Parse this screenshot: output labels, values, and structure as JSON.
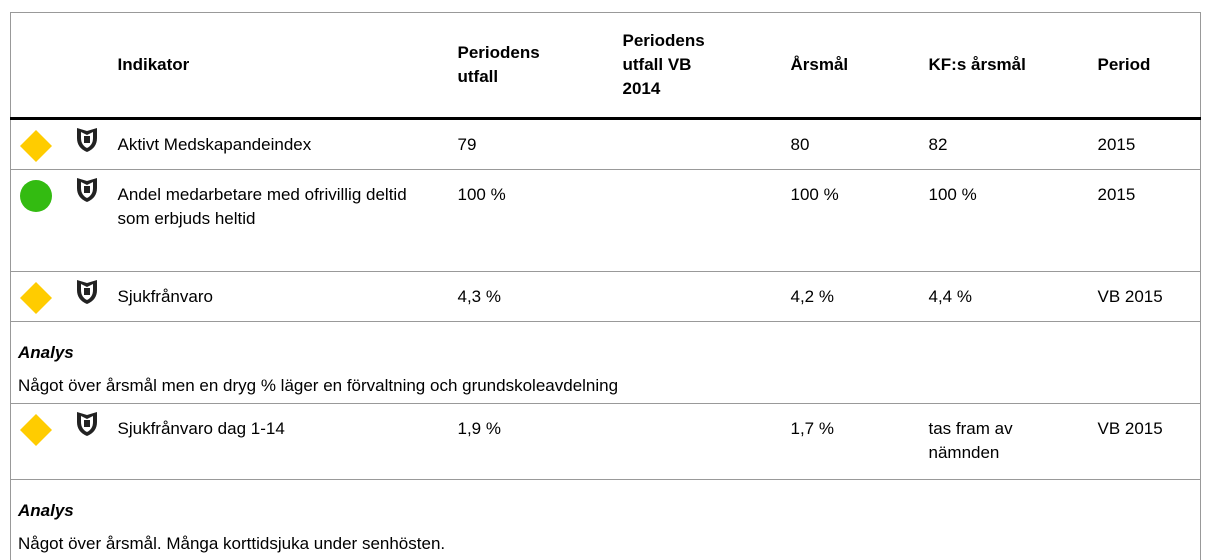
{
  "table": {
    "headers": [
      "Indikator",
      "Periodens utfall",
      "Periodens utfall VB 2014",
      "Årsmål",
      "KF:s årsmål",
      "Period"
    ],
    "rows": [
      {
        "indicator": "Aktivt Medskapandeindex",
        "outcome": "79",
        "target": "80",
        "kf_target": "82",
        "period": "2015"
      },
      {
        "indicator": "Andel medarbetare med ofrivillig deltid som erbjuds heltid",
        "outcome": "100 %",
        "target": "100 %",
        "kf_target": "100 %",
        "period": "2015"
      },
      {
        "indicator": "Sjukfrånvaro",
        "outcome": "4,3 %",
        "target": "4,2 %",
        "kf_target": "4,4 %",
        "period": "VB 2015",
        "analysis": {
          "label": "Analys",
          "text": "Något över årsmål men en dryg % läger en förvaltning och grundskoleavdelning"
        }
      },
      {
        "indicator": "Sjukfrånvaro dag 1-14",
        "outcome": "1,9 %",
        "target": "1,7 %",
        "kf_target": "tas fram av nämnden",
        "period": "VB 2015",
        "analysis": {
          "label": "Analys",
          "text": "Något över årsmål. Många korttidsjuka under senhösten."
        }
      }
    ]
  }
}
